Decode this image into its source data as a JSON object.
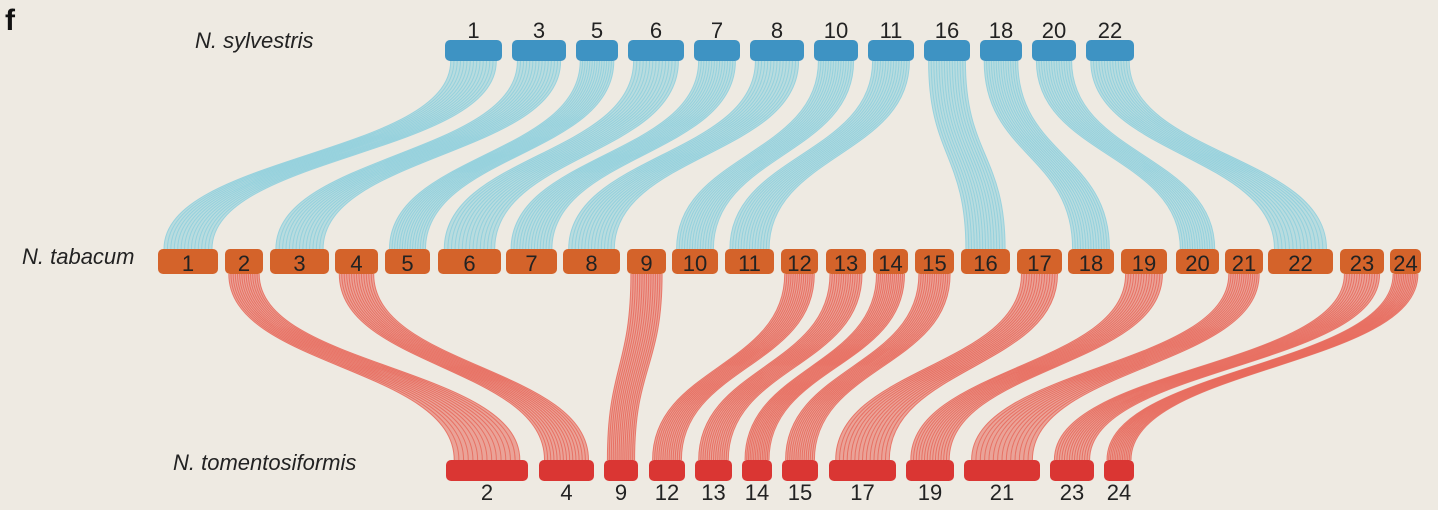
{
  "panel_label": "f",
  "colors": {
    "background": "#EEEAE2",
    "sylvestris_chr": "#3E93C3",
    "tabacum_chr": "#D4632A",
    "tomentosiformis_chr": "#DA3633",
    "sylvestris_links": "#8ECFDD",
    "tomentosiformis_links": "#E8685B"
  },
  "genomes": {
    "sylvestris": {
      "name": "N. sylvestris",
      "chromosomes": [
        "1",
        "3",
        "5",
        "6",
        "7",
        "8",
        "10",
        "11",
        "16",
        "18",
        "20",
        "22"
      ]
    },
    "tabacum": {
      "name": "N. tabacum",
      "chromosomes": [
        "1",
        "2",
        "3",
        "4",
        "5",
        "6",
        "7",
        "8",
        "9",
        "10",
        "11",
        "12",
        "13",
        "14",
        "15",
        "16",
        "17",
        "18",
        "19",
        "20",
        "21",
        "22",
        "23",
        "24"
      ]
    },
    "tomentosiformis": {
      "name": "N. tomentosiformis",
      "chromosomes": [
        "2",
        "4",
        "9",
        "12",
        "13",
        "14",
        "15",
        "17",
        "19",
        "21",
        "23",
        "24"
      ]
    }
  },
  "links": {
    "sylvestris_to_tabacum": [
      {
        "from": "1",
        "to": "1"
      },
      {
        "from": "3",
        "to": "3"
      },
      {
        "from": "5",
        "to": "5"
      },
      {
        "from": "6",
        "to": "6"
      },
      {
        "from": "7",
        "to": "7"
      },
      {
        "from": "8",
        "to": "8"
      },
      {
        "from": "10",
        "to": "10"
      },
      {
        "from": "11",
        "to": "11"
      },
      {
        "from": "16",
        "to": "16"
      },
      {
        "from": "18",
        "to": "18"
      },
      {
        "from": "20",
        "to": "20"
      },
      {
        "from": "22",
        "to": "22"
      }
    ],
    "tabacum_to_tomentosiformis": [
      {
        "from": "2",
        "to": "2"
      },
      {
        "from": "4",
        "to": "4"
      },
      {
        "from": "9",
        "to": "9"
      },
      {
        "from": "12",
        "to": "12"
      },
      {
        "from": "13",
        "to": "13"
      },
      {
        "from": "14",
        "to": "14"
      },
      {
        "from": "15",
        "to": "15"
      },
      {
        "from": "17",
        "to": "17"
      },
      {
        "from": "19",
        "to": "19"
      },
      {
        "from": "21",
        "to": "21"
      },
      {
        "from": "23",
        "to": "23"
      },
      {
        "from": "24",
        "to": "24"
      }
    ]
  }
}
